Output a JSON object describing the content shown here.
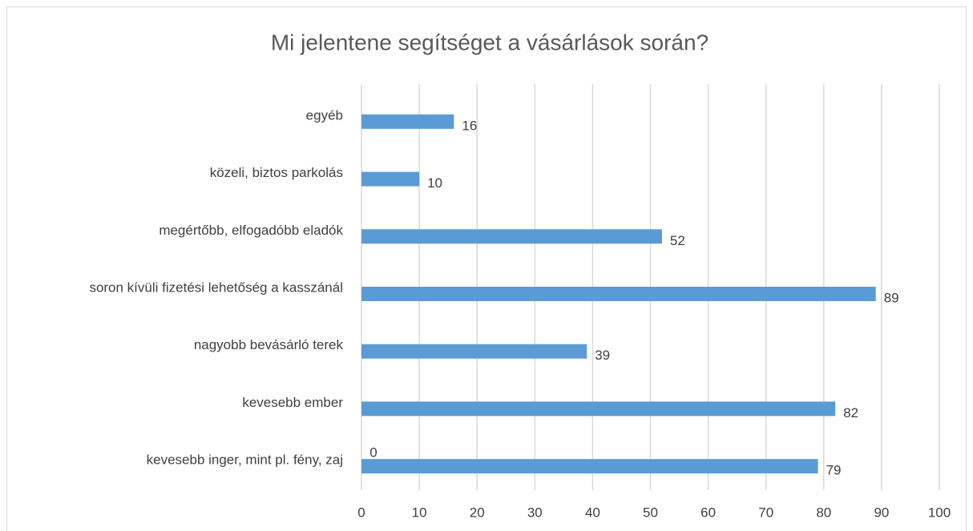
{
  "chart_data": {
    "type": "bar",
    "orientation": "horizontal",
    "title": "Mi jelentene segítséget a vásárlások során?",
    "categories": [
      "egyéb",
      "közeli, biztos parkolás",
      "megértőbb, elfogadóbb eladók",
      "soron kívüli fizetési lehetőség a kasszánál",
      "nagyobb bevásárló terek",
      "kevesebb ember",
      "kevesebb inger, mint pl. fény, zaj"
    ],
    "values": [
      16,
      10,
      52,
      89,
      39,
      82,
      79
    ],
    "color": "#5b9bd5",
    "xlim": [
      0,
      100
    ],
    "xticks": [
      0,
      10,
      20,
      30,
      40,
      50,
      60,
      70,
      80,
      90,
      100
    ],
    "grid": true,
    "annotations": [
      {
        "text": "0"
      }
    ]
  }
}
